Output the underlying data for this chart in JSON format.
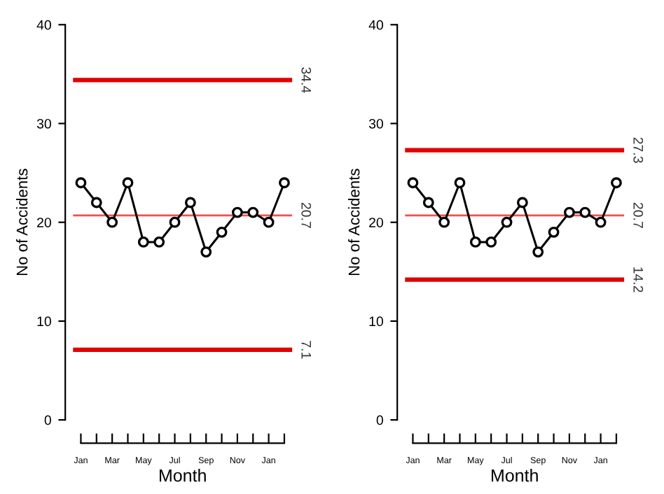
{
  "chart_data": [
    {
      "type": "line",
      "xlabel": "Month",
      "ylabel": "No of Accidents",
      "categories": [
        "Jan",
        null,
        "Mar",
        null,
        "May",
        null,
        "Jul",
        null,
        "Sep",
        null,
        "Nov",
        null,
        "Jan",
        null
      ],
      "series": [
        {
          "color": "#000000",
          "values": [
            24,
            22,
            20,
            24,
            18,
            18,
            20,
            22,
            17,
            19,
            21,
            21,
            20,
            24
          ]
        }
      ],
      "ylim": [
        0,
        40
      ],
      "yticks": [
        0,
        10,
        20,
        30,
        40
      ],
      "marker": "circle",
      "line_style": "solid",
      "grid": false,
      "legend": false,
      "ref_lines": [
        {
          "axis": "y",
          "value": 34.4,
          "label": "34.4",
          "color": "#e00000"
        },
        {
          "axis": "y",
          "value": 20.7,
          "label": "20.7",
          "color": "#f05050"
        },
        {
          "axis": "y",
          "value": 7.1,
          "label": "7.1",
          "color": "#e00000"
        }
      ]
    },
    {
      "type": "line",
      "xlabel": "Month",
      "ylabel": "No of Accidents",
      "categories": [
        "Jan",
        null,
        "Mar",
        null,
        "May",
        null,
        "Jul",
        null,
        "Sep",
        null,
        "Nov",
        null,
        "Jan",
        null
      ],
      "series": [
        {
          "color": "#000000",
          "values": [
            24,
            22,
            20,
            24,
            18,
            18,
            20,
            22,
            17,
            19,
            21,
            21,
            20,
            24
          ]
        }
      ],
      "ylim": [
        0,
        40
      ],
      "yticks": [
        0,
        10,
        20,
        30,
        40
      ],
      "marker": "circle",
      "line_style": "solid",
      "grid": false,
      "legend": false,
      "ref_lines": [
        {
          "axis": "y",
          "value": 27.3,
          "label": "27.3",
          "color": "#e00000"
        },
        {
          "axis": "y",
          "value": 20.7,
          "label": "20.7",
          "color": "#f05050"
        },
        {
          "axis": "y",
          "value": 14.2,
          "label": "14.2",
          "color": "#e00000"
        }
      ]
    }
  ]
}
